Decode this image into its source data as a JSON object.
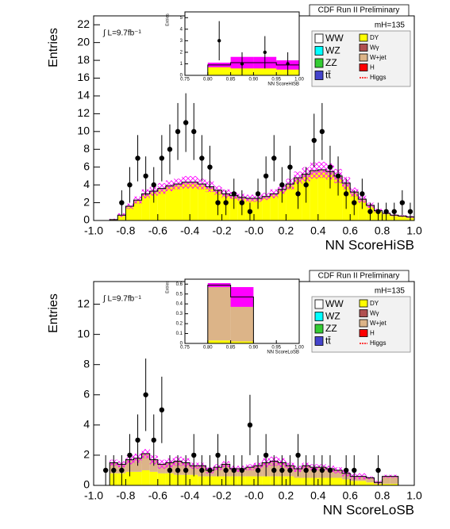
{
  "chart_data": [
    {
      "type": "histogram",
      "title": "CDF Run II Preliminary",
      "annotation": "∫ L=9.7fb⁻¹",
      "mass_label": "mH=135",
      "xlabel": "NN ScoreHiSB",
      "ylabel": "Entries",
      "bins": [
        -1,
        -0.95,
        -0.9,
        -0.85,
        -0.8,
        -0.75,
        -0.7,
        -0.65,
        -0.6,
        -0.55,
        -0.5,
        -0.45,
        -0.4,
        -0.35,
        -0.3,
        -0.25,
        -0.2,
        -0.15,
        -0.1,
        -0.05,
        0,
        0.05,
        0.1,
        0.15,
        0.2,
        0.25,
        0.3,
        0.35,
        0.4,
        0.45,
        0.5,
        0.55,
        0.6,
        0.65,
        0.7,
        0.75,
        0.8,
        0.85,
        0.9,
        0.95,
        1
      ],
      "series": [
        {
          "name": "DY",
          "color": "#ffff00",
          "values": [
            0,
            0,
            0.1,
            0.5,
            1.5,
            2.2,
            2.8,
            3.1,
            3.4,
            3.7,
            3.9,
            4.1,
            4.1,
            3.9,
            3.6,
            3.2,
            2.8,
            2.6,
            2.4,
            2.3,
            2.3,
            2.5,
            2.8,
            3.3,
            3.9,
            4.5,
            4.9,
            5.3,
            5.4,
            5.2,
            4.7,
            3.9,
            3.0,
            2.2,
            1.5,
            1.0,
            0.7,
            0.5,
            0.4,
            0.3
          ]
        },
        {
          "name": "W+jet",
          "color": "#dcb488",
          "values": [
            0,
            0,
            0,
            0.1,
            0.1,
            0.1,
            0.2,
            0.2,
            0.2,
            0.2,
            0.2,
            0.2,
            0.2,
            0.2,
            0.2,
            0.2,
            0.2,
            0.2,
            0.2,
            0.2,
            0.2,
            0.2,
            0.2,
            0.2,
            0.2,
            0.3,
            0.3,
            0.3,
            0.3,
            0.3,
            0.3,
            0.3,
            0.2,
            0.2,
            0.2,
            0.1,
            0.1,
            0.1,
            0.1,
            0.1
          ]
        }
      ],
      "uncertainty": [
        0,
        0,
        0.1,
        0.2,
        0.3,
        0.4,
        0.5,
        0.5,
        0.6,
        0.6,
        0.6,
        0.7,
        0.7,
        0.6,
        0.6,
        0.5,
        0.5,
        0.4,
        0.4,
        0.4,
        0.4,
        0.4,
        0.5,
        0.5,
        0.6,
        0.7,
        0.8,
        0.9,
        0.9,
        0.9,
        0.8,
        0.7,
        0.5,
        0.4,
        0.3,
        0.2,
        0.1,
        0.1,
        0.1,
        0.1
      ],
      "uncertainty_color": "#ff00ff",
      "points": {
        "x": [
          -0.825,
          -0.775,
          -0.725,
          -0.675,
          -0.625,
          -0.575,
          -0.525,
          -0.475,
          -0.425,
          -0.375,
          -0.325,
          -0.275,
          -0.225,
          -0.175,
          -0.125,
          -0.075,
          -0.025,
          0.025,
          0.075,
          0.125,
          0.175,
          0.225,
          0.275,
          0.325,
          0.375,
          0.425,
          0.475,
          0.525,
          0.575,
          0.625,
          0.675,
          0.725,
          0.775,
          0.825,
          0.875,
          0.925,
          0.975
        ],
        "values": [
          2,
          4,
          7,
          5,
          4,
          7,
          8,
          10,
          11,
          10,
          7,
          6,
          2,
          2,
          3,
          2,
          1,
          3,
          5,
          7,
          4,
          6,
          3,
          4,
          9,
          10,
          6,
          5,
          3,
          2,
          3,
          1,
          1,
          1,
          1,
          2,
          1
        ],
        "errors": [
          1.4,
          2,
          2.6,
          2.2,
          2,
          2.6,
          2.8,
          3.2,
          3.3,
          3.2,
          2.6,
          2.4,
          1.4,
          1.4,
          1.7,
          1.4,
          1,
          1.7,
          2.2,
          2.6,
          2,
          2.4,
          1.7,
          2,
          3,
          3.2,
          2.4,
          2.2,
          1.7,
          1.4,
          1.7,
          1,
          1,
          1,
          1,
          1.4,
          1
        ]
      },
      "legend": [
        {
          "name": "WW",
          "color": "#ffffff"
        },
        {
          "name": "WZ",
          "color": "#00ffff"
        },
        {
          "name": "ZZ",
          "color": "#33cc33"
        },
        {
          "name": "tt̄",
          "color": "#4444cc"
        },
        {
          "name": "DY",
          "color": "#ffff00"
        },
        {
          "name": "Wγ",
          "color": "#b05050"
        },
        {
          "name": "W+jet",
          "color": "#dcb488"
        },
        {
          "name": "H",
          "color": "#ff0000"
        },
        {
          "name": "Higgs",
          "color": "#ff0000"
        }
      ],
      "xlim": [
        -1,
        1
      ],
      "ylim": [
        0,
        23
      ],
      "xticks": [
        {
          "value": -1,
          "label": "-1.0"
        },
        {
          "value": -0.8,
          "label": "-0.8"
        },
        {
          "value": -0.6,
          "label": "-0.6"
        },
        {
          "value": -0.4,
          "label": "-0.4"
        },
        {
          "value": -0.2,
          "label": "-0.2"
        },
        {
          "value": 0,
          "label": "-0.0"
        },
        0.2,
        0.4,
        0.6,
        0.8,
        {
          "value": 1,
          "label": "1.0"
        }
      ],
      "yticks": [
        0,
        2,
        4,
        6,
        8,
        10,
        12,
        14,
        16,
        18,
        20,
        22
      ]
    },
    {
      "type": "histogram",
      "xlabel": "NN ScoreHiSB",
      "ylabel": "Entries",
      "bins": [
        0.75,
        0.8,
        0.85,
        0.9,
        0.95,
        1
      ],
      "series": [
        {
          "name": "DY",
          "color": "#ffff00",
          "values": [
            0,
            0.8,
            1.0,
            1.0,
            0.8
          ]
        },
        {
          "name": "W+jet",
          "color": "#dcb488",
          "values": [
            0,
            0.1,
            0.1,
            0.1,
            0.1
          ]
        }
      ],
      "uncertainty": [
        0,
        0.2,
        0.5,
        0.5,
        0.4
      ],
      "uncertainty_color": "#ff00ff",
      "points": {
        "x": [
          0.825,
          0.875,
          0.925,
          0.975
        ],
        "values": [
          3,
          1,
          2,
          1
        ],
        "errors": [
          1.7,
          1,
          1.4,
          1
        ]
      },
      "xlim": [
        0.75,
        1
      ],
      "ylim": [
        0,
        5.5
      ],
      "xticks": [
        0.75,
        {
          "value": 0.8,
          "label": "0.80"
        },
        0.85,
        {
          "value": 0.9,
          "label": "0.90"
        },
        0.95,
        {
          "value": 1,
          "label": "1.00"
        }
      ],
      "yticks": [
        0,
        1,
        2,
        3,
        4,
        5
      ]
    },
    {
      "type": "histogram",
      "title": "CDF Run II Preliminary",
      "annotation": "∫ L=9.7fb⁻¹",
      "mass_label": "mH=135",
      "xlabel": "NN ScoreLoSB",
      "ylabel": "Entries",
      "bins": [
        -1,
        -0.95,
        -0.9,
        -0.85,
        -0.8,
        -0.75,
        -0.7,
        -0.65,
        -0.6,
        -0.55,
        -0.5,
        -0.45,
        -0.4,
        -0.35,
        -0.3,
        -0.25,
        -0.2,
        -0.15,
        -0.1,
        -0.05,
        0,
        0.05,
        0.1,
        0.15,
        0.2,
        0.25,
        0.3,
        0.35,
        0.4,
        0.45,
        0.5,
        0.55,
        0.6,
        0.65,
        0.7,
        0.75,
        0.8,
        0.85,
        0.9,
        0.95,
        1
      ],
      "series": [
        {
          "name": "DY",
          "color": "#ffff00",
          "values": [
            0,
            0,
            0.8,
            0.8,
            0.9,
            0.9,
            1.0,
            0.9,
            0.8,
            0.8,
            0.7,
            0.7,
            0.7,
            0.6,
            0.6,
            0.6,
            0.6,
            0.6,
            0.6,
            0.6,
            0.6,
            0.6,
            0.6,
            0.6,
            0.6,
            0.5,
            0.5,
            0.5,
            0.5,
            0.5,
            0.5,
            0.4,
            0.3,
            0.3,
            0.2,
            0.1,
            0.1,
            0.1,
            0,
            0
          ]
        },
        {
          "name": "W+jet",
          "color": "#dcb488",
          "values": [
            0,
            0,
            0.7,
            0.6,
            0.8,
            0.9,
            1.1,
            0.8,
            0.6,
            0.7,
            0.9,
            0.8,
            0.6,
            0.7,
            0.4,
            0.6,
            0.8,
            0.5,
            0.5,
            0.6,
            0.7,
            0.9,
            1.0,
            0.9,
            0.7,
            0.6,
            0.8,
            0.7,
            0.7,
            0.6,
            0.5,
            0.4,
            0.3,
            0.3,
            0.3,
            0.1,
            0.5,
            0.5,
            0,
            0
          ]
        }
      ],
      "uncertainty": [
        0,
        0,
        0.2,
        0.2,
        0.3,
        0.3,
        0.3,
        0.3,
        0.3,
        0.3,
        0.3,
        0.3,
        0.2,
        0.2,
        0.2,
        0.2,
        0.2,
        0.2,
        0.2,
        0.2,
        0.2,
        0.3,
        0.3,
        0.3,
        0.2,
        0.2,
        0.2,
        0.2,
        0.2,
        0.2,
        0.2,
        0.2,
        0.2,
        0.2,
        0.1,
        0.1,
        0.1,
        0.1,
        0,
        0
      ],
      "uncertainty_color": "#ff00ff",
      "points": {
        "x": [
          -0.925,
          -0.875,
          -0.825,
          -0.775,
          -0.725,
          -0.675,
          -0.625,
          -0.575,
          -0.525,
          -0.475,
          -0.425,
          -0.375,
          -0.325,
          -0.275,
          -0.225,
          -0.175,
          -0.125,
          -0.075,
          -0.025,
          0.025,
          0.075,
          0.125,
          0.175,
          0.225,
          0.275,
          0.325,
          0.375,
          0.425,
          0.475,
          0.575,
          0.625,
          0.775
        ],
        "values": [
          1,
          1,
          1,
          2,
          3,
          6,
          3,
          5,
          1,
          1,
          1,
          2,
          1,
          1,
          2,
          1,
          1,
          1,
          4,
          1,
          2,
          1,
          1,
          1,
          2,
          1,
          1,
          1,
          1,
          1,
          1,
          1
        ],
        "errors": [
          1,
          1,
          1,
          1.4,
          1.7,
          2.4,
          1.7,
          2.2,
          1,
          1,
          1,
          1.4,
          1,
          1,
          1.4,
          1,
          1,
          1,
          2,
          1,
          1.4,
          1,
          1,
          1,
          1.4,
          1,
          1,
          1,
          1,
          1,
          1,
          1
        ]
      },
      "legend": [
        {
          "name": "WW",
          "color": "#ffffff"
        },
        {
          "name": "WZ",
          "color": "#00ffff"
        },
        {
          "name": "ZZ",
          "color": "#33cc33"
        },
        {
          "name": "tt̄",
          "color": "#4444cc"
        },
        {
          "name": "DY",
          "color": "#ffff00"
        },
        {
          "name": "Wγ",
          "color": "#b05050"
        },
        {
          "name": "W+jet",
          "color": "#dcb488"
        },
        {
          "name": "H",
          "color": "#ff0000"
        },
        {
          "name": "Higgs",
          "color": "#ff0000"
        }
      ],
      "xlim": [
        -1,
        1
      ],
      "ylim": [
        0,
        13.5
      ],
      "xticks": [
        {
          "value": -1,
          "label": "-1.0"
        },
        {
          "value": -0.8,
          "label": "-0.8"
        },
        {
          "value": -0.6,
          "label": "-0.6"
        },
        {
          "value": -0.4,
          "label": "-0.4"
        },
        {
          "value": -0.2,
          "label": "-0.2"
        },
        {
          "value": 0,
          "label": "-0.0"
        },
        0.2,
        0.4,
        0.6,
        0.8,
        {
          "value": 1,
          "label": "1.0"
        }
      ],
      "yticks": [
        0,
        2,
        4,
        6,
        8,
        10,
        12
      ]
    },
    {
      "type": "histogram",
      "xlabel": "NN ScoreLoSB",
      "ylabel": "Entries",
      "bins": [
        0.75,
        0.8,
        0.85,
        0.9,
        0.95,
        1
      ],
      "series": [
        {
          "name": "DY",
          "color": "#ffff00",
          "values": [
            0,
            0.03,
            0.02,
            0,
            0
          ]
        },
        {
          "name": "W+jet",
          "color": "#dcb488",
          "values": [
            0,
            0.56,
            0.45,
            0,
            0
          ]
        }
      ],
      "uncertainty": [
        0,
        0.02,
        0.1,
        0,
        0
      ],
      "uncertainty_color": "#ff00ff",
      "xlim": [
        0.75,
        1
      ],
      "ylim": [
        0,
        0.65
      ],
      "xticks": [
        0.75,
        {
          "value": 0.8,
          "label": "0.80"
        },
        0.85,
        {
          "value": 0.9,
          "label": "0.90"
        },
        0.95,
        {
          "value": 1,
          "label": "1.00"
        }
      ],
      "yticks": [
        0,
        0.1,
        0.2,
        0.3,
        0.4,
        0.5,
        0.6
      ]
    }
  ]
}
